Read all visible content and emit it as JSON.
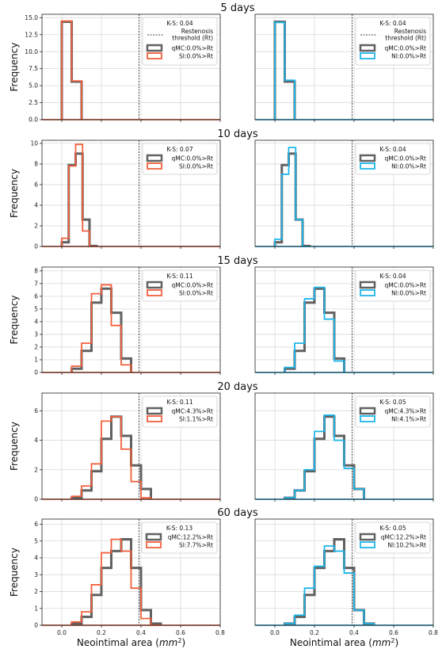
{
  "figure": {
    "xlabel": "Neointimal area (",
    "xlabel_unit": "mm",
    "xlabel_sup": "2",
    "xlabel_end": ")",
    "ylabel": "Frequency",
    "threshold_label": "Restenosis\nthreshold (Rt)"
  },
  "colors": {
    "qmc": "#616161",
    "si": "#f2603e",
    "ni": "#1fb6ea",
    "threshold": "#444444"
  },
  "chart_data": [
    {
      "type": "histogram",
      "title": "5 days",
      "ylim": [
        0,
        15.5
      ],
      "yticks": [
        "0.0",
        "2.5",
        "5.0",
        "7.5",
        "10.0",
        "12.5",
        "15.0"
      ],
      "xlim": [
        -0.1,
        0.8
      ],
      "xticks": [
        "0.0",
        "0.2",
        "0.4",
        "0.6",
        "0.8"
      ],
      "threshold": 0.39,
      "bin_edges": [
        0.0,
        0.05,
        0.1
      ],
      "left": {
        "ks": "K-S: 0.04",
        "series": [
          {
            "name": "qMC:0.0%>Rt",
            "key": "qmc",
            "values": [
              14.4,
              5.6
            ]
          },
          {
            "name": "SI:0.0%>Rt",
            "key": "si",
            "values": [
              14.5,
              5.7
            ]
          }
        ],
        "show_threshold_legend": true
      },
      "right": {
        "ks": "K-S: 0.04",
        "series": [
          {
            "name": "qMC:0.0%>Rt",
            "key": "qmc",
            "values": [
              14.4,
              5.6
            ]
          },
          {
            "name": "NI:0.0%>Rt",
            "key": "ni",
            "values": [
              14.3,
              5.8
            ]
          }
        ],
        "show_threshold_legend": true
      }
    },
    {
      "type": "histogram",
      "title": "10 days",
      "ylim": [
        0,
        10.3
      ],
      "yticks": [
        "0",
        "2",
        "4",
        "6",
        "8",
        "10"
      ],
      "xlim": [
        -0.1,
        0.8
      ],
      "xticks": [
        "0.0",
        "0.2",
        "0.4",
        "0.6",
        "0.8"
      ],
      "threshold": 0.39,
      "bin_edges": [
        0.0,
        0.035,
        0.07,
        0.105,
        0.14,
        0.175
      ],
      "left": {
        "ks": "K-S: 0.07",
        "series": [
          {
            "name": "qMC:0.0%>Rt",
            "key": "qmc",
            "values": [
              0.4,
              7.9,
              9.0,
              2.6,
              0.05
            ]
          },
          {
            "name": "SI:0.0%>Rt",
            "key": "si",
            "values": [
              0.8,
              7.8,
              9.9,
              1.5,
              0.0
            ]
          }
        ],
        "show_threshold_legend": false
      },
      "right": {
        "ks": "K-S: 0.04",
        "series": [
          {
            "name": "qMC:0.0%>Rt",
            "key": "qmc",
            "values": [
              0.4,
              7.9,
              9.0,
              2.6,
              0.05
            ]
          },
          {
            "name": "NI:0.0%>Rt",
            "key": "ni",
            "values": [
              0.7,
              7.0,
              9.6,
              2.6,
              0.0
            ]
          }
        ],
        "show_threshold_legend": false
      }
    },
    {
      "type": "histogram",
      "title": "15 days",
      "ylim": [
        0,
        8.3
      ],
      "yticks": [
        "0",
        "1",
        "2",
        "3",
        "4",
        "5",
        "6",
        "7",
        "8"
      ],
      "xlim": [
        -0.1,
        0.8
      ],
      "xticks": [
        "0.0",
        "0.2",
        "0.4",
        "0.6",
        "0.8"
      ],
      "threshold": 0.39,
      "bin_edges": [
        0.05,
        0.1,
        0.15,
        0.2,
        0.25,
        0.3,
        0.35
      ],
      "left": {
        "ks": "K-S: 0.11",
        "series": [
          {
            "name": "qMC:0.0%>Rt",
            "key": "qmc",
            "values": [
              0.3,
              1.7,
              5.5,
              6.6,
              4.7,
              1.1
            ]
          },
          {
            "name": "SI:0.0%>Rt",
            "key": "si",
            "values": [
              0.5,
              2.3,
              6.2,
              6.9,
              3.7,
              0.6
            ]
          }
        ],
        "show_threshold_legend": false
      },
      "right": {
        "ks": "K-S: 0.04",
        "series": [
          {
            "name": "qMC:0.0%>Rt",
            "key": "qmc",
            "values": [
              0.3,
              1.7,
              5.5,
              6.6,
              4.7,
              1.1
            ]
          },
          {
            "name": "NI:0.0%>Rt",
            "key": "ni",
            "values": [
              0.4,
              2.3,
              5.8,
              6.7,
              4.2,
              0.9
            ]
          }
        ],
        "show_threshold_legend": false
      }
    },
    {
      "type": "histogram",
      "title": "20 days",
      "ylim": [
        0,
        7.2
      ],
      "yticks": [
        "0",
        "2",
        "4",
        "6"
      ],
      "xlim": [
        -0.1,
        0.8
      ],
      "xticks": [
        "0.0",
        "0.2",
        "0.4",
        "0.6",
        "0.8"
      ],
      "threshold": 0.39,
      "bin_edges": [
        0.05,
        0.1,
        0.15,
        0.2,
        0.25,
        0.3,
        0.35,
        0.4,
        0.45
      ],
      "left": {
        "ks": "K-S: 0.11",
        "series": [
          {
            "name": "qMC:4.3%>Rt",
            "key": "qmc",
            "values": [
              0.1,
              0.6,
              1.9,
              4.1,
              5.6,
              4.3,
              2.3,
              0.7
            ]
          },
          {
            "name": "SI:1.1%>Rt",
            "key": "si",
            "values": [
              0.2,
              0.9,
              2.4,
              5.3,
              5.6,
              3.4,
              1.2,
              0.1
            ]
          }
        ],
        "show_threshold_legend": false
      },
      "right": {
        "ks": "K-S: 0.05",
        "series": [
          {
            "name": "qMC:4.3%>Rt",
            "key": "qmc",
            "values": [
              0.1,
              0.6,
              1.9,
              4.1,
              5.6,
              4.3,
              2.3,
              0.7
            ]
          },
          {
            "name": "NI:4.1%>Rt",
            "key": "ni",
            "values": [
              0.1,
              0.6,
              2.0,
              4.6,
              5.7,
              4.0,
              2.1,
              0.7
            ]
          }
        ],
        "show_threshold_legend": false
      }
    },
    {
      "type": "histogram",
      "title": "60 days",
      "ylim": [
        0,
        6.3
      ],
      "yticks": [
        "0",
        "1",
        "2",
        "3",
        "4",
        "5",
        "6"
      ],
      "xlim": [
        -0.1,
        0.8
      ],
      "xticks": [
        "0.0",
        "0.2",
        "0.4",
        "0.6",
        "0.8"
      ],
      "threshold": 0.39,
      "bin_edges": [
        0.05,
        0.1,
        0.15,
        0.2,
        0.25,
        0.3,
        0.35,
        0.4,
        0.45,
        0.5
      ],
      "left": {
        "ks": "K-S: 0.13",
        "series": [
          {
            "name": "qMC:12.2%>Rt",
            "key": "qmc",
            "values": [
              0.1,
              0.5,
              1.8,
              3.4,
              4.4,
              5.1,
              3.4,
              0.9,
              0.1
            ]
          },
          {
            "name": "SI:7.7%>Rt",
            "key": "si",
            "values": [
              0.2,
              0.8,
              2.4,
              4.3,
              5.1,
              4.4,
              2.2,
              0.4,
              0.0
            ]
          }
        ],
        "show_threshold_legend": false
      },
      "right": {
        "ks": "K-S: 0.05",
        "series": [
          {
            "name": "qMC:12.2%>Rt",
            "key": "qmc",
            "values": [
              0.1,
              0.5,
              1.8,
              3.4,
              4.4,
              5.1,
              3.4,
              0.9,
              0.1
            ]
          },
          {
            "name": "NI:10.2%>Rt",
            "key": "ni",
            "values": [
              0.1,
              0.6,
              2.2,
              3.5,
              4.7,
              4.4,
              3.1,
              0.9,
              0.1
            ]
          }
        ],
        "show_threshold_legend": false
      }
    }
  ]
}
